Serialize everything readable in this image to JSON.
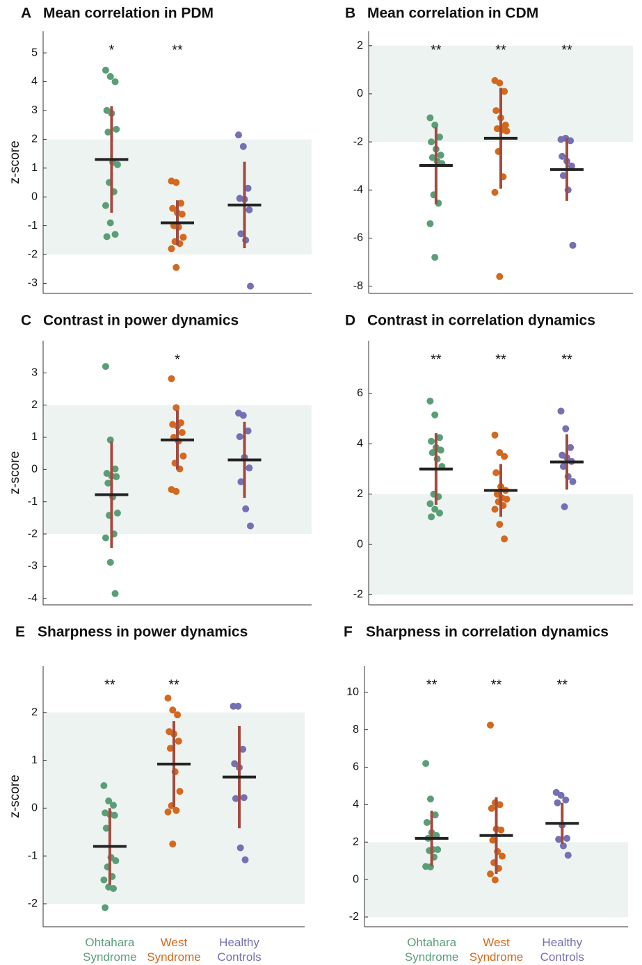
{
  "chart_data": [
    {
      "type": "strip",
      "panel_label": "A",
      "title": "Mean correlation in PDM",
      "ylabel": "z-score",
      "ylim": [
        -3.35,
        5.75
      ],
      "yticks": [
        -3,
        -2,
        -1,
        0,
        1,
        2,
        3,
        4,
        5
      ],
      "band": [
        -2,
        2
      ],
      "series": [
        {
          "color": "#5a9e78",
          "values": [
            4.4,
            4.18,
            4.0,
            3.0,
            2.9,
            2.35,
            2.25,
            1.2,
            1.12,
            0.5,
            0.18,
            -0.3,
            -0.9,
            -1.3,
            -1.38
          ],
          "mean": 1.3,
          "error": 1.85,
          "significance": "*"
        },
        {
          "color": "#d2691e",
          "values": [
            0.55,
            0.5,
            -0.22,
            -0.4,
            -0.55,
            -0.6,
            -1.0,
            -1.05,
            -1.4,
            -1.55,
            -1.62,
            -1.8,
            -2.45
          ],
          "mean": -0.9,
          "error": 0.78,
          "significance": "**"
        },
        {
          "color": "#7570b3",
          "values": [
            2.15,
            1.75,
            0.3,
            -0.05,
            -0.08,
            -0.45,
            -1.28,
            -1.5,
            -3.1
          ],
          "mean": -0.28,
          "error": 1.5
        }
      ]
    },
    {
      "type": "strip",
      "panel_label": "B",
      "title": "Mean correlation in CDM",
      "ylim": [
        -8.3,
        2.6
      ],
      "yticks": [
        -8,
        -6,
        -4,
        -2,
        0,
        2
      ],
      "band": [
        -2,
        2
      ],
      "series": [
        {
          "color": "#5a9e78",
          "values": [
            -1.0,
            -1.3,
            -1.8,
            -2.0,
            -2.3,
            -2.55,
            -2.65,
            -2.8,
            -2.9,
            -4.2,
            -4.55,
            -5.4,
            -6.8
          ],
          "mean": -2.98,
          "error": 1.6,
          "significance": "**"
        },
        {
          "color": "#d2691e",
          "values": [
            0.55,
            0.45,
            0.1,
            -0.7,
            -1.0,
            -1.3,
            -1.45,
            -1.5,
            -1.55,
            -2.4,
            -3.45,
            -4.1,
            -7.6
          ],
          "mean": -1.85,
          "error": 2.1,
          "significance": "**"
        },
        {
          "color": "#7570b3",
          "values": [
            -1.9,
            -1.85,
            -1.95,
            -2.6,
            -2.8,
            -3.0,
            -3.4,
            -4.0,
            -6.3
          ],
          "mean": -3.15,
          "error": 1.3,
          "significance": "**"
        }
      ]
    },
    {
      "type": "strip",
      "panel_label": "C",
      "title": "Contrast in power dynamics",
      "ylabel": "z-score",
      "ylim": [
        -4.2,
        4.0
      ],
      "yticks": [
        -4,
        -3,
        -2,
        -1,
        0,
        1,
        2,
        3
      ],
      "band": [
        -2,
        2
      ],
      "series": [
        {
          "color": "#5a9e78",
          "values": [
            3.2,
            0.92,
            0.02,
            -0.12,
            -0.2,
            -0.22,
            -0.42,
            -0.85,
            -1.35,
            -1.42,
            -2.0,
            -2.12,
            -2.88,
            -3.85
          ],
          "mean": -0.78,
          "error": 1.65
        },
        {
          "color": "#d2691e",
          "values": [
            2.82,
            1.92,
            1.45,
            1.4,
            1.35,
            1.15,
            1.0,
            0.88,
            0.42,
            0.2,
            0.02,
            -0.62,
            -0.68
          ],
          "mean": 0.92,
          "error": 0.92,
          "significance": "*"
        },
        {
          "color": "#7570b3",
          "values": [
            1.75,
            1.68,
            1.2,
            1.02,
            0.38,
            0.05,
            -0.38,
            -1.22,
            -1.75
          ],
          "mean": 0.3,
          "error": 1.18
        }
      ]
    },
    {
      "type": "strip",
      "panel_label": "D",
      "title": "Contrast in correlation dynamics",
      "ylim": [
        -2.4,
        8.1
      ],
      "yticks": [
        -2,
        0,
        2,
        4,
        6
      ],
      "band": [
        -2,
        2
      ],
      "series": [
        {
          "color": "#5a9e78",
          "values": [
            5.7,
            5.15,
            4.25,
            4.1,
            3.85,
            3.75,
            3.65,
            3.4,
            3.1,
            2.0,
            1.9,
            1.62,
            1.4,
            1.25,
            1.1
          ],
          "mean": 3.0,
          "error": 1.42,
          "significance": "**"
        },
        {
          "color": "#d2691e",
          "values": [
            4.35,
            3.65,
            3.5,
            2.85,
            2.3,
            2.15,
            2.0,
            1.85,
            1.8,
            1.7,
            1.55,
            1.4,
            0.8,
            0.22
          ],
          "mean": 2.15,
          "error": 1.05,
          "significance": "**"
        },
        {
          "color": "#7570b3",
          "values": [
            5.3,
            4.6,
            3.85,
            3.55,
            3.45,
            3.3,
            3.1,
            2.7,
            2.5,
            1.5
          ],
          "mean": 3.28,
          "error": 1.1,
          "significance": "**"
        }
      ]
    },
    {
      "type": "strip",
      "panel_label": "E",
      "title": "Sharpness in power dynamics",
      "ylabel": "z-score",
      "categories": [
        "Ohtahara Syndrome",
        "West Syndrome",
        "Healthy Controls"
      ],
      "ylim": [
        -2.48,
        2.97
      ],
      "yticks": [
        -2,
        -1,
        0,
        1,
        2
      ],
      "band": [
        -2,
        2
      ],
      "series": [
        {
          "color": "#5a9e78",
          "values": [
            0.47,
            0.15,
            0.06,
            -0.1,
            -0.13,
            -0.15,
            -0.42,
            -1.03,
            -1.1,
            -1.23,
            -1.43,
            -1.5,
            -1.65,
            -1.68,
            -2.08
          ],
          "mean": -0.8,
          "error": 0.8,
          "significance": "**"
        },
        {
          "color": "#d2691e",
          "values": [
            2.3,
            2.05,
            1.95,
            1.6,
            1.55,
            1.4,
            1.25,
            0.76,
            0.35,
            0.05,
            -0.05,
            -0.08,
            -0.75
          ],
          "mean": 0.92,
          "error": 0.9,
          "significance": "**"
        },
        {
          "color": "#7570b3",
          "values": [
            2.13,
            2.13,
            1.23,
            0.93,
            0.85,
            0.22,
            0.2,
            -0.83,
            -1.08
          ],
          "mean": 0.65,
          "error": 1.07
        }
      ]
    },
    {
      "type": "strip",
      "panel_label": "F",
      "title": "Sharpness in correlation dynamics",
      "categories": [
        "Ohtahara Syndrome",
        "West Syndrome",
        "Healthy Controls"
      ],
      "ylim": [
        -2.52,
        11.4
      ],
      "yticks": [
        -2,
        0,
        2,
        4,
        6,
        8,
        10
      ],
      "band": [
        -2,
        2
      ],
      "series": [
        {
          "color": "#5a9e78",
          "values": [
            6.2,
            4.3,
            3.45,
            3.05,
            2.5,
            2.35,
            2.2,
            1.6,
            1.6,
            1.55,
            1.2,
            0.7,
            0.68
          ],
          "mean": 2.2,
          "error": 1.48,
          "significance": "**"
        },
        {
          "color": "#d2691e",
          "values": [
            8.25,
            4.1,
            4.0,
            3.8,
            2.7,
            2.65,
            2.1,
            1.5,
            1.25,
            0.9,
            0.6,
            0.3,
            -0.02
          ],
          "mean": 2.35,
          "error": 2.05,
          "significance": "**"
        },
        {
          "color": "#7570b3",
          "values": [
            4.65,
            4.5,
            4.25,
            4.1,
            2.9,
            2.2,
            2.15,
            1.8,
            1.3
          ],
          "mean": 3.0,
          "error": 1.1,
          "significance": "**"
        }
      ]
    }
  ]
}
